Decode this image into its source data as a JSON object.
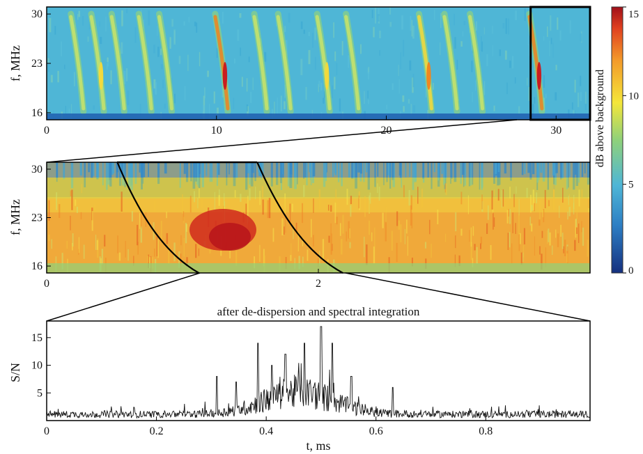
{
  "colors": {
    "low": "#1a3b9c",
    "background": "#4fb6d6",
    "mid": "#8fd17a",
    "yellow": "#f4e63a",
    "orange": "#f39a2a",
    "high": "#c8161d",
    "frame": "#000000"
  },
  "chart_data": [
    {
      "type": "heatmap",
      "panel": "top",
      "ylabel": "f, MHz",
      "x_ticks": [
        "0",
        "10",
        "20",
        "30"
      ],
      "y_ticks": [
        "30",
        "23",
        "16"
      ],
      "xlim": [
        0,
        32
      ],
      "ylim": [
        15,
        31
      ],
      "bursts_x": [
        2.0,
        3.2,
        4.4,
        6.0,
        7.2,
        10.5,
        12.8,
        14.2,
        16.5,
        18.2,
        22.5,
        24.0,
        25.5,
        29.0
      ],
      "bursts_intensity": [
        5,
        9,
        7,
        4,
        8,
        14,
        8,
        6,
        9,
        5,
        10,
        8,
        5,
        14
      ],
      "zoom_window_x": [
        28.5,
        32
      ],
      "colorbar": {
        "label": "dB above background",
        "ticks": [
          "15",
          "10",
          "5",
          "0"
        ],
        "range": [
          0,
          15
        ]
      }
    },
    {
      "type": "heatmap",
      "panel": "middle",
      "ylabel": "f, MHz",
      "x_ticks": [
        "0",
        "2"
      ],
      "y_ticks": [
        "30",
        "23",
        "16"
      ],
      "xlim": [
        0,
        4
      ],
      "ylim": [
        15,
        31
      ],
      "dispersion_curves_top_x": [
        0.52,
        1.55
      ],
      "dispersion_curves_bottom_x": [
        1.12,
        2.18
      ]
    },
    {
      "type": "line",
      "panel": "bottom",
      "title": "after de-dispersion and spectral integration",
      "xlabel": "t, ms",
      "ylabel": "S/N",
      "x_ticks": [
        "0",
        "0.2",
        "0.4",
        "0.6",
        "0.8"
      ],
      "y_ticks": [
        "15",
        "10",
        "5"
      ],
      "xlim": [
        0,
        0.99
      ],
      "ylim": [
        0,
        18
      ],
      "envelope": {
        "baseline": 1.0,
        "peak_t": 0.46,
        "peak_level": 4.5,
        "width": 0.09
      },
      "spikes": [
        {
          "t": 0.31,
          "sn": 8
        },
        {
          "t": 0.345,
          "sn": 7
        },
        {
          "t": 0.385,
          "sn": 14
        },
        {
          "t": 0.41,
          "sn": 10
        },
        {
          "t": 0.435,
          "sn": 12
        },
        {
          "t": 0.47,
          "sn": 14
        },
        {
          "t": 0.5,
          "sn": 17
        },
        {
          "t": 0.52,
          "sn": 14
        },
        {
          "t": 0.555,
          "sn": 8
        },
        {
          "t": 0.63,
          "sn": 6
        }
      ]
    }
  ]
}
